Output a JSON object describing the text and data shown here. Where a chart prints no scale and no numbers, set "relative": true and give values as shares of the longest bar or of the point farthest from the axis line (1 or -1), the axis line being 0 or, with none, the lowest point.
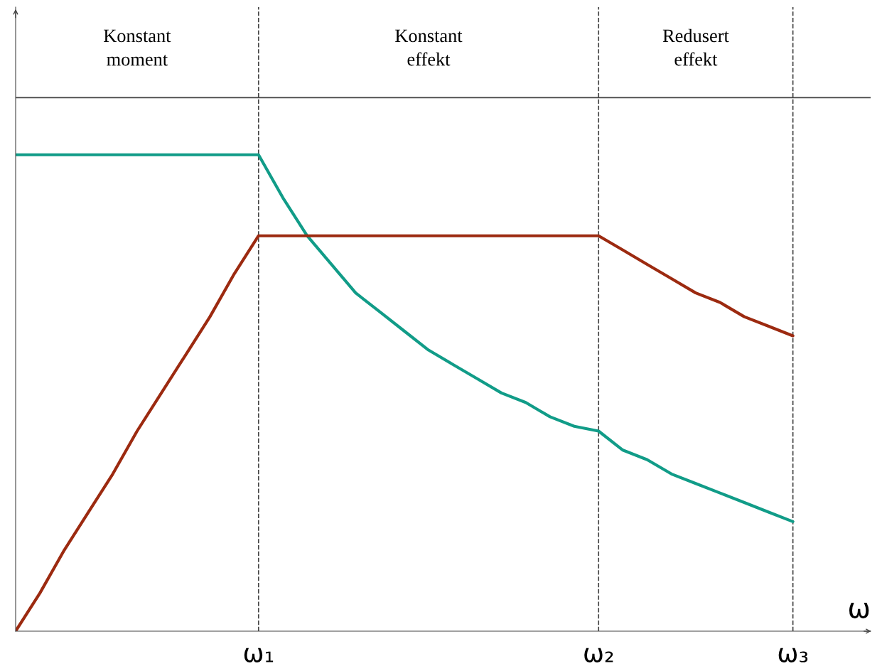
{
  "chart_data": {
    "type": "line",
    "relative": true,
    "xlabel": "ω",
    "categories": [
      null,
      null,
      null,
      null,
      null,
      null,
      null,
      null,
      null,
      null,
      "ω₁",
      null,
      null,
      null,
      null,
      null,
      null,
      null,
      null,
      null,
      null,
      null,
      null,
      null,
      "ω₂",
      null,
      null,
      null,
      null,
      null,
      null,
      null,
      "ω₃"
    ],
    "grid": "x",
    "legend": false,
    "line_style": "solid",
    "marker": "none",
    "series": [
      {
        "color": "#119c88",
        "values": [
          1,
          1,
          1,
          1,
          1,
          1,
          1,
          1,
          1,
          1,
          1,
          0.91,
          0.83,
          0.77,
          0.71,
          0.67,
          0.63,
          0.59,
          0.56,
          0.53,
          0.5,
          0.48,
          0.45,
          0.43,
          0.42,
          0.38,
          0.36,
          0.33,
          0.31,
          0.29,
          0.27,
          0.25,
          0.23
        ]
      },
      {
        "color": "#9c2a10",
        "values": [
          0,
          0.08,
          0.17,
          0.25,
          0.33,
          0.42,
          0.5,
          0.58,
          0.66,
          0.75,
          0.83,
          0.83,
          0.83,
          0.83,
          0.83,
          0.83,
          0.83,
          0.83,
          0.83,
          0.83,
          0.83,
          0.83,
          0.83,
          0.83,
          0.83,
          0.8,
          0.77,
          0.74,
          0.71,
          0.69,
          0.66,
          0.64,
          0.62
        ]
      }
    ],
    "ref_lines": [
      {
        "axis": "y",
        "value": 1.12,
        "line_style": "solid",
        "color": "#444444"
      }
    ],
    "annotations": [
      "Konstant\nmoment",
      "Konstant\neffekt",
      "Redusert\neffekt"
    ]
  }
}
